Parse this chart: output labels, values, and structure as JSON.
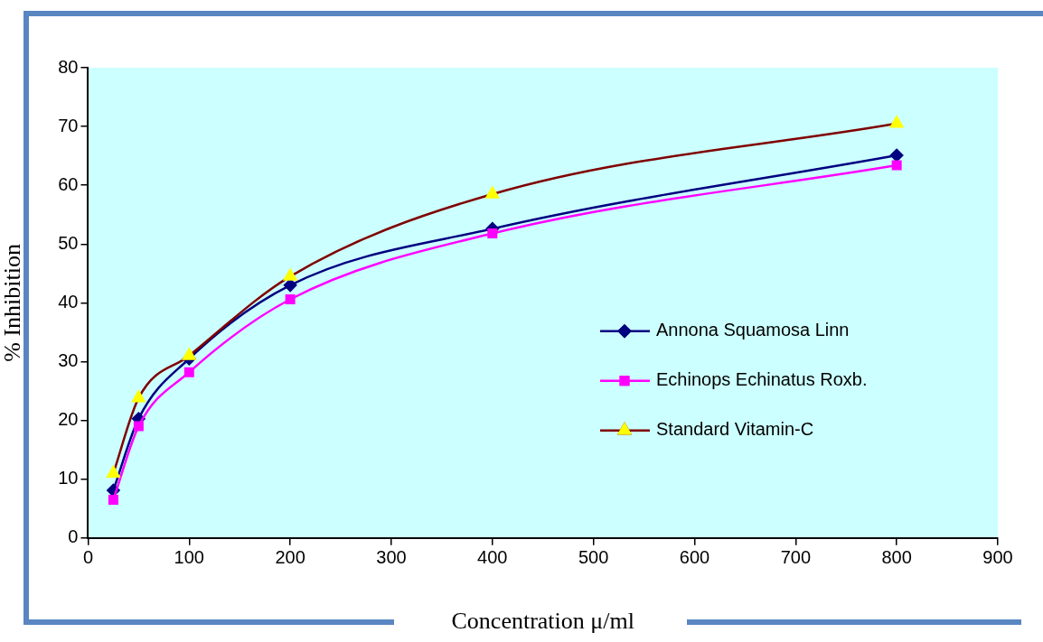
{
  "chart_data": {
    "type": "line",
    "xlabel": "Concentration μ/ml",
    "ylabel": "% Inhibition",
    "x": [
      25,
      50,
      100,
      200,
      400,
      800
    ],
    "series": [
      {
        "name": "Annona Squamosa Linn",
        "color": "#000080",
        "marker": "diamond",
        "values": [
          8.1,
          20.3,
          30.5,
          43,
          52.6,
          65.1
        ]
      },
      {
        "name": "Echinops Echinatus Roxb.",
        "color": "#ff00ff",
        "marker": "square",
        "values": [
          6.5,
          19,
          28.2,
          40.6,
          51.8,
          63.4
        ]
      },
      {
        "name": "Standard Vitamin-C",
        "color": "#800000",
        "colors": [
          "#ffff00",
          "#ffff00",
          "#ffff00",
          "#ffff00",
          "#ffff00",
          "#ffff00"
        ],
        "marker": "triangle",
        "values": [
          11,
          23.8,
          31,
          44.5,
          58.5,
          70.5
        ]
      }
    ],
    "xlim": [
      0,
      900
    ],
    "xticks": [
      0,
      100,
      200,
      300,
      400,
      500,
      600,
      700,
      800,
      900
    ],
    "ylim": [
      0,
      80
    ],
    "yticks": [
      0,
      10,
      20,
      30,
      40,
      50,
      60,
      70,
      80
    ],
    "grid": false,
    "legend": "right",
    "line_style": "solid"
  }
}
